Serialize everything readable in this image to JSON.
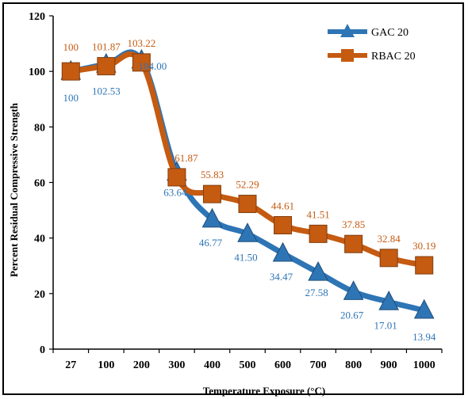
{
  "chart_data": {
    "type": "line",
    "title": "",
    "xlabel": "Temperature Exposure (°C)",
    "ylabel": "Percent Residual Compressive Strength",
    "categories": [
      "27",
      "100",
      "200",
      "300",
      "400",
      "500",
      "600",
      "700",
      "800",
      "900",
      "1000"
    ],
    "ylim": [
      0,
      120
    ],
    "yticks": [
      0,
      20,
      40,
      60,
      80,
      100,
      120
    ],
    "grid": false,
    "legend_position": "top-right",
    "series": [
      {
        "name": "GAC 20",
        "color": "#2e75b6",
        "marker": "triangle",
        "values": [
          100,
          102.53,
          104.0,
          63.64,
          46.77,
          41.5,
          34.47,
          27.58,
          20.67,
          17.01,
          13.94
        ],
        "labels": [
          "100",
          "102.53",
          "104.00",
          "63.64",
          "46.77",
          "41.50",
          "34.47",
          "27.58",
          "20.67",
          "17.01",
          "13.94"
        ]
      },
      {
        "name": "RBAC 20",
        "color": "#c55a11",
        "marker": "square",
        "values": [
          100,
          101.87,
          103.22,
          61.87,
          55.83,
          52.29,
          44.61,
          41.51,
          37.85,
          32.84,
          30.19
        ],
        "labels": [
          "100",
          "101.87",
          "103.22",
          "61.87",
          "55.83",
          "52.29",
          "44.61",
          "41.51",
          "37.85",
          "32.84",
          "30.19"
        ]
      }
    ]
  }
}
